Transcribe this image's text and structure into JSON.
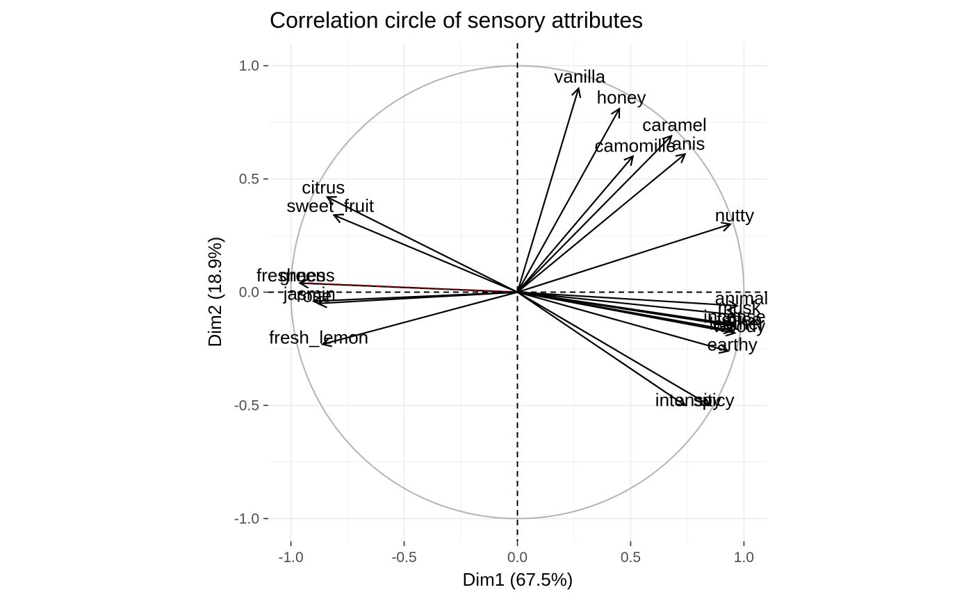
{
  "chart_data": {
    "type": "scatter",
    "subtype": "pca-correlation-circle",
    "title": "Correlation circle of sensory attributes",
    "xlabel": "Dim1 (67.5%)",
    "ylabel": "Dim2 (18.9%)",
    "xlim": [
      -1.1,
      1.1
    ],
    "ylim": [
      -1.1,
      1.1
    ],
    "xticks": [
      -1.0,
      -0.5,
      0.0,
      0.5,
      1.0
    ],
    "yticks": [
      -1.0,
      -0.5,
      0.0,
      0.5,
      1.0
    ],
    "xtick_labels": [
      "-1.0",
      "-0.5",
      "0.0",
      "0.5",
      "1.0"
    ],
    "ytick_labels": [
      "-1.0",
      "-0.5",
      "0.0",
      "0.5",
      "1.0"
    ],
    "grid": true,
    "unit_circle": true,
    "active_color": "#000000",
    "supplementary_color": "#8b0000",
    "variables": [
      {
        "name": "vanilla",
        "x": 0.27,
        "y": 0.9,
        "supplementary": false
      },
      {
        "name": "honey",
        "x": 0.45,
        "y": 0.81,
        "supplementary": false
      },
      {
        "name": "caramel",
        "x": 0.68,
        "y": 0.69,
        "supplementary": false
      },
      {
        "name": "anis",
        "x": 0.74,
        "y": 0.61,
        "supplementary": false
      },
      {
        "name": "camomille",
        "x": 0.51,
        "y": 0.6,
        "supplementary": false
      },
      {
        "name": "citrus",
        "x": -0.84,
        "y": 0.42,
        "supplementary": false
      },
      {
        "name": "sweet_fruit",
        "x": -0.81,
        "y": 0.34,
        "supplementary": false
      },
      {
        "name": "nutty",
        "x": 0.94,
        "y": 0.3,
        "supplementary": false
      },
      {
        "name": "freshness",
        "x": -0.96,
        "y": 0.04,
        "supplementary": false
      },
      {
        "name": "green",
        "x": -0.93,
        "y": 0.04,
        "supplementary": true
      },
      {
        "name": "jasmin",
        "x": -0.9,
        "y": -0.04,
        "supplementary": false
      },
      {
        "name": "rose",
        "x": -0.88,
        "y": -0.05,
        "supplementary": false
      },
      {
        "name": "fresh_lemon",
        "x": -0.86,
        "y": -0.23,
        "supplementary": false
      },
      {
        "name": "animal",
        "x": 0.97,
        "y": -0.06,
        "supplementary": false
      },
      {
        "name": "musk",
        "x": 0.96,
        "y": -0.1,
        "supplementary": false
      },
      {
        "name": "incense",
        "x": 0.94,
        "y": -0.14,
        "supplementary": false
      },
      {
        "name": "toffee",
        "x": 0.96,
        "y": -0.15,
        "supplementary": false
      },
      {
        "name": "leather",
        "x": 0.95,
        "y": -0.17,
        "supplementary": false
      },
      {
        "name": "woody",
        "x": 0.96,
        "y": -0.18,
        "supplementary": false
      },
      {
        "name": "earthy",
        "x": 0.93,
        "y": -0.26,
        "supplementary": false
      },
      {
        "name": "intensity",
        "x": 0.74,
        "y": -0.5,
        "supplementary": false
      },
      {
        "name": "spicy",
        "x": 0.85,
        "y": -0.5,
        "supplementary": false
      }
    ]
  }
}
